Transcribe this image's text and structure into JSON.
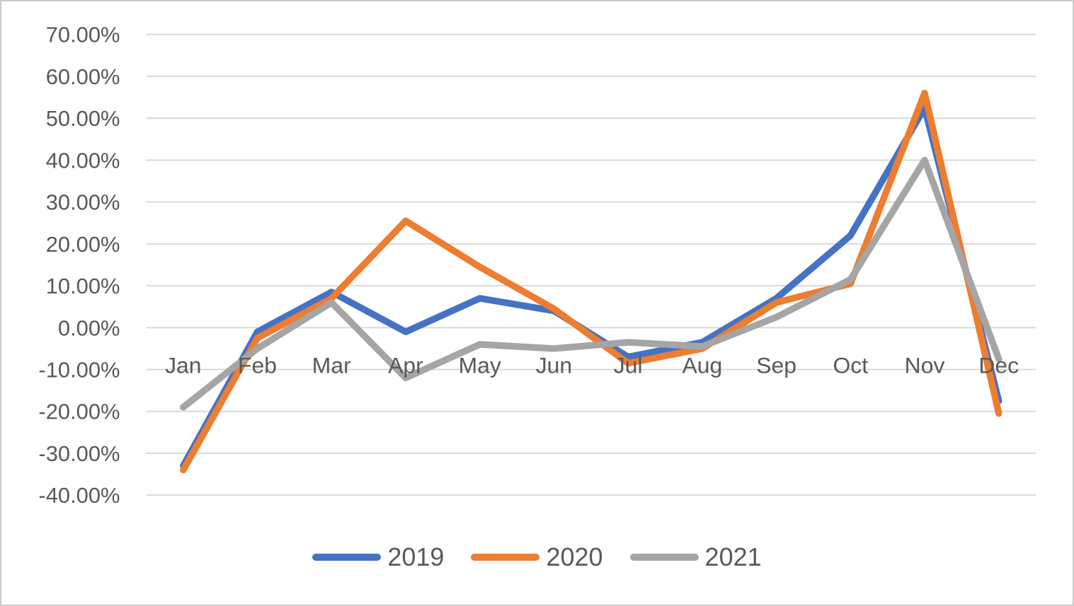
{
  "chart_data": {
    "type": "line",
    "title": "",
    "categories": [
      "Jan",
      "Feb",
      "Mar",
      "Apr",
      "May",
      "Jun",
      "Jul",
      "Aug",
      "Sep",
      "Oct",
      "Nov",
      "Dec"
    ],
    "series": [
      {
        "name": "2019",
        "color": "#4472C4",
        "values": [
          -33,
          -1,
          8.5,
          -1,
          7,
          4,
          -7,
          -3.5,
          7,
          22,
          52.5,
          -17.5
        ]
      },
      {
        "name": "2020",
        "color": "#ED7D31",
        "values": [
          -34,
          -2.5,
          7,
          25.5,
          14.5,
          4.5,
          -8.5,
          -5,
          6,
          10.5,
          56,
          -20.5
        ]
      },
      {
        "name": "2021",
        "color": "#A5A5A5",
        "values": [
          -19,
          -5,
          6,
          -12,
          -4,
          -5,
          -3.5,
          -4.5,
          2.5,
          11.5,
          40,
          -7.5
        ]
      }
    ],
    "y_axis": {
      "min": -40,
      "max": 70,
      "step": 10,
      "tick_labels": [
        "70.00%",
        "60.00%",
        "50.00%",
        "40.00%",
        "30.00%",
        "20.00%",
        "10.00%",
        "0.00%",
        "-10.00%",
        "-20.00%",
        "-30.00%",
        "-40.00%"
      ]
    },
    "x_label": "",
    "y_label": "",
    "grid": "horizontal",
    "legend_position": "bottom"
  },
  "legend": {
    "items": [
      {
        "label": "2019",
        "color": "#4472C4"
      },
      {
        "label": "2020",
        "color": "#ED7D31"
      },
      {
        "label": "2021",
        "color": "#A5A5A5"
      }
    ]
  },
  "style": {
    "axis_text_color": "#595959",
    "gridline_color": "#D9D9D9",
    "frame_border_color": "#C9CACB",
    "background": "#FFFFFF"
  }
}
